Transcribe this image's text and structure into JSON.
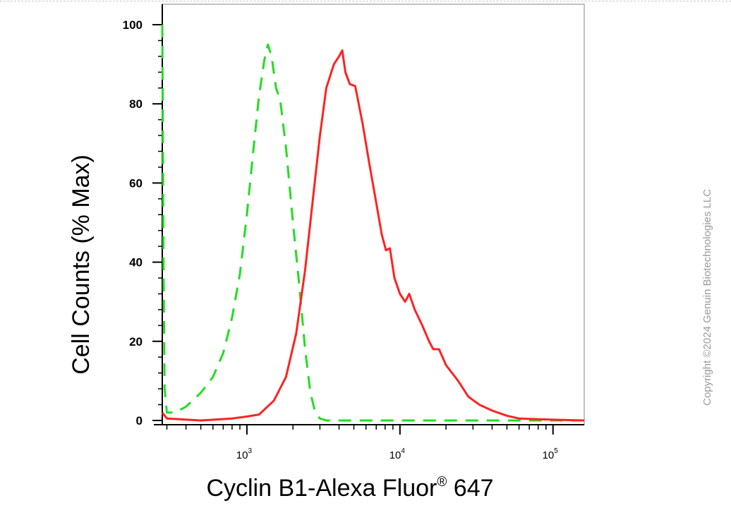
{
  "chart_data": {
    "type": "line",
    "xlabel": "Cyclin B1-Alexa Fluor",
    "xlabel_mark": "®",
    "xlabel_suffix": " 647",
    "ylabel": "Cell Counts (% Max)",
    "xscale": "log",
    "xlim": [
      280,
      160000
    ],
    "ylim": [
      0,
      105
    ],
    "yticks": [
      0,
      20,
      40,
      60,
      80,
      100
    ],
    "xticks": [
      {
        "value": 1000,
        "base": "10",
        "exp": "3"
      },
      {
        "value": 10000,
        "base": "10",
        "exp": "4"
      },
      {
        "value": 100000,
        "base": "10",
        "exp": "5"
      }
    ],
    "series": [
      {
        "style": "dashed",
        "color": "#22dd22",
        "points": [
          [
            280,
            100
          ],
          [
            285,
            40
          ],
          [
            290,
            8
          ],
          [
            300,
            2
          ],
          [
            340,
            2
          ],
          [
            400,
            3.5
          ],
          [
            500,
            7
          ],
          [
            600,
            11
          ],
          [
            700,
            17
          ],
          [
            800,
            26
          ],
          [
            900,
            37
          ],
          [
            1000,
            52
          ],
          [
            1100,
            68
          ],
          [
            1200,
            82
          ],
          [
            1300,
            91
          ],
          [
            1370,
            95
          ],
          [
            1450,
            92
          ],
          [
            1550,
            84
          ],
          [
            1650,
            81
          ],
          [
            1800,
            69
          ],
          [
            2000,
            50
          ],
          [
            2200,
            34
          ],
          [
            2400,
            18
          ],
          [
            2600,
            7
          ],
          [
            2800,
            2
          ],
          [
            3000,
            0.5
          ],
          [
            3300,
            0
          ],
          [
            5000,
            0
          ],
          [
            160000,
            0
          ]
        ]
      },
      {
        "style": "solid",
        "color": "#ff2222",
        "points": [
          [
            280,
            2
          ],
          [
            300,
            0.5
          ],
          [
            500,
            0
          ],
          [
            800,
            0.5
          ],
          [
            1000,
            1
          ],
          [
            1200,
            1.5
          ],
          [
            1500,
            5
          ],
          [
            1800,
            11
          ],
          [
            2100,
            22
          ],
          [
            2400,
            38
          ],
          [
            2700,
            56
          ],
          [
            3000,
            72
          ],
          [
            3300,
            84
          ],
          [
            3700,
            90
          ],
          [
            4000,
            92
          ],
          [
            4200,
            93.5
          ],
          [
            4400,
            88
          ],
          [
            4700,
            85
          ],
          [
            5100,
            84.5
          ],
          [
            5700,
            75
          ],
          [
            6300,
            65
          ],
          [
            7000,
            55
          ],
          [
            7600,
            47
          ],
          [
            8100,
            43
          ],
          [
            8600,
            43.5
          ],
          [
            9200,
            36
          ],
          [
            10000,
            32
          ],
          [
            10800,
            30
          ],
          [
            11500,
            32
          ],
          [
            12500,
            28
          ],
          [
            14000,
            24
          ],
          [
            15500,
            20
          ],
          [
            16500,
            18
          ],
          [
            18000,
            18
          ],
          [
            20000,
            14
          ],
          [
            24000,
            10
          ],
          [
            28000,
            6
          ],
          [
            33000,
            4
          ],
          [
            40000,
            2.5
          ],
          [
            50000,
            1.2
          ],
          [
            60000,
            0.5
          ],
          [
            80000,
            0.3
          ],
          [
            100000,
            0.2
          ],
          [
            160000,
            0
          ]
        ]
      }
    ]
  },
  "copyright": "Copyright ©2024 Genuin Biotechnologies LLC"
}
